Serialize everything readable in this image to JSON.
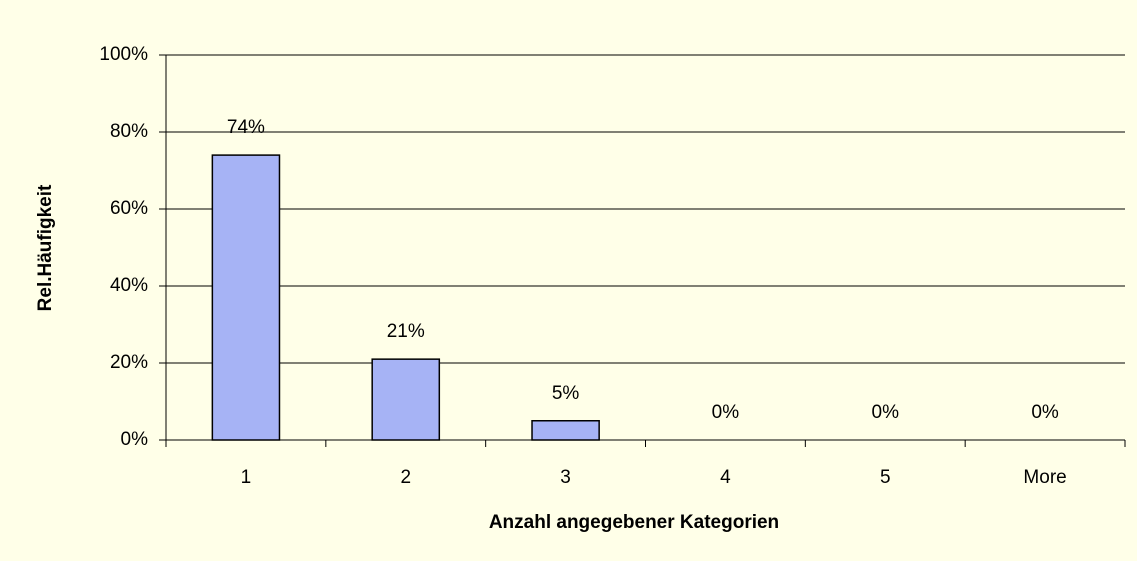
{
  "chart_data": {
    "type": "bar",
    "xlabel": "Anzahl angegebener Kategorien",
    "ylabel": "Rel.Häufigkeit",
    "categories": [
      "1",
      "2",
      "3",
      "4",
      "5",
      "More"
    ],
    "values": [
      74,
      21,
      5,
      0,
      0,
      0
    ],
    "value_labels": [
      "74%",
      "21%",
      "5%",
      "0%",
      "0%",
      "0%"
    ],
    "color": "#a6b3f5",
    "ylim": [
      0,
      100
    ],
    "yticks": [
      {
        "value": 0,
        "label": "0%"
      },
      {
        "value": 20,
        "label": "20%"
      },
      {
        "value": 40,
        "label": "40%"
      },
      {
        "value": 60,
        "label": "60%"
      },
      {
        "value": 80,
        "label": "80%"
      },
      {
        "value": 100,
        "label": "100%"
      }
    ],
    "grid": true
  }
}
